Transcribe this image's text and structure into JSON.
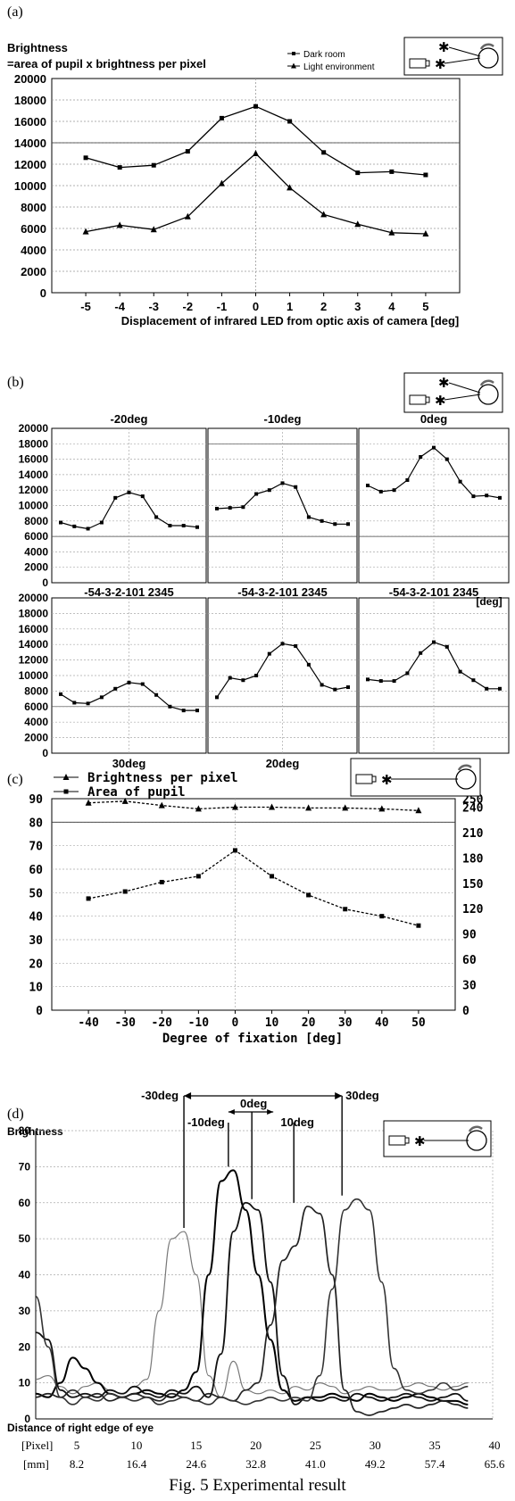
{
  "figure_caption": "Fig. 5 Experimental result",
  "chart_data": [
    {
      "panel": "(a)",
      "type": "line",
      "ylabel_lines": [
        "Brightness",
        "=area of pupil x brightness per pixel"
      ],
      "xlabel": "Displacement of infrared LED from optic axis of camera  [deg]",
      "x": [
        -5,
        -4,
        -3,
        -2,
        -1,
        0,
        1,
        2,
        3,
        4,
        5
      ],
      "xlim": [
        -6,
        6
      ],
      "ylim": [
        0,
        20000
      ],
      "yticks": [
        0,
        2000,
        4000,
        6000,
        8000,
        10000,
        12000,
        14000,
        16000,
        18000,
        20000
      ],
      "series": [
        {
          "name": "Dark room",
          "marker": "square",
          "values": [
            12600,
            11700,
            11900,
            13200,
            16300,
            17400,
            16000,
            13100,
            11200,
            11300,
            11000
          ]
        },
        {
          "name": "Light environment",
          "marker": "triangle",
          "values": [
            5700,
            6300,
            5900,
            7100,
            10200,
            13000,
            9800,
            7300,
            6400,
            5600,
            5500
          ]
        }
      ],
      "grid": true,
      "legend": "top-right"
    },
    {
      "panel": "(b)",
      "type": "line",
      "x": [
        -5,
        -4,
        -3,
        -2,
        -1,
        0,
        1,
        2,
        3,
        4,
        5
      ],
      "ylim": [
        0,
        20000
      ],
      "yticks": [
        0,
        2000,
        4000,
        6000,
        8000,
        10000,
        12000,
        14000,
        16000,
        18000,
        20000
      ],
      "xtick_text": "-54-3-2-101 2345",
      "x_unit": "[deg]",
      "subplots": [
        {
          "label": "-20deg",
          "values": [
            7800,
            7300,
            7000,
            7800,
            11000,
            11700,
            11200,
            8500,
            7400,
            7400,
            7200
          ]
        },
        {
          "label": "-10deg",
          "values": [
            9600,
            9700,
            9800,
            11500,
            12000,
            12900,
            12400,
            8500,
            8000,
            7600,
            7600
          ]
        },
        {
          "label": "0deg",
          "values": [
            12600,
            11800,
            12000,
            13300,
            16300,
            17500,
            16000,
            13100,
            11200,
            11300,
            11000
          ]
        },
        {
          "label": "30deg",
          "values": [
            7600,
            6500,
            6400,
            7200,
            8300,
            9100,
            8900,
            7500,
            6000,
            5500,
            5500
          ]
        },
        {
          "label": "20deg",
          "values": [
            7200,
            9700,
            9400,
            10000,
            12800,
            14100,
            13800,
            11400,
            8800,
            8200,
            8500
          ]
        },
        {
          "label": "10deg",
          "values": [
            9500,
            9300,
            9300,
            10300,
            12900,
            14300,
            13700,
            10500,
            9400,
            8300,
            8300
          ]
        }
      ],
      "grid": true
    },
    {
      "panel": "(c)",
      "type": "line",
      "xlabel": "Degree of fixation [deg]",
      "x": [
        -40,
        -30,
        -20,
        -10,
        0,
        10,
        20,
        30,
        40,
        50
      ],
      "xlim": [
        -50,
        60
      ],
      "left_axis": {
        "ylim": [
          0,
          90
        ],
        "yticks": [
          0,
          10,
          20,
          30,
          40,
          50,
          60,
          70,
          80,
          90
        ]
      },
      "right_axis": {
        "ylim": [
          0,
          250
        ],
        "yticks": [
          0,
          30,
          60,
          90,
          120,
          150,
          180,
          210,
          240,
          250
        ]
      },
      "series": [
        {
          "name": "Brightness per pixel",
          "marker": "triangle",
          "axis": "right",
          "values": [
            245,
            247,
            242,
            238,
            240,
            240,
            239,
            239,
            238,
            236
          ]
        },
        {
          "name": "Area of pupil",
          "marker": "square",
          "axis": "left",
          "values": [
            47.5,
            50.5,
            54.5,
            57,
            68,
            57,
            49,
            43,
            40,
            36
          ]
        }
      ],
      "grid": true,
      "legend": "top-left"
    },
    {
      "panel": "(d)",
      "type": "line",
      "ylabel": "Brightness",
      "ylim": [
        0,
        80
      ],
      "yticks": [
        0,
        10,
        20,
        30,
        40,
        50,
        60,
        70,
        80
      ],
      "xlabel": "Distance of right edge of eye",
      "pixel_ticks": {
        "unit": "[Pixel]",
        "values": [
          5,
          10,
          15,
          20,
          25,
          30,
          35,
          40
        ]
      },
      "mm_ticks": {
        "unit": "[mm]",
        "values": [
          "8.2",
          "16.4",
          "24.6",
          "32.8",
          "41.0",
          "49.2",
          "57.4",
          "65.6"
        ]
      },
      "xlim": [
        3,
        40
      ],
      "annotations": [
        "-30deg",
        "0deg",
        "30deg",
        "-10deg",
        "10deg"
      ],
      "series": [
        {
          "label": "-30deg",
          "x": [
            3,
            4,
            5,
            6,
            7,
            8,
            9,
            10,
            11,
            12,
            13,
            14,
            15,
            16,
            17,
            18,
            19,
            20,
            21,
            22,
            23,
            24,
            25,
            26,
            27,
            28,
            29,
            30,
            31,
            32,
            33,
            34,
            35,
            36,
            37,
            38
          ],
          "values": [
            11,
            12,
            9,
            7,
            9,
            10,
            8,
            7,
            9,
            11,
            30,
            50,
            52,
            40,
            12,
            6,
            16,
            8,
            7,
            8,
            7,
            9,
            8,
            10,
            9,
            7,
            8,
            9,
            8,
            8,
            9,
            10,
            9,
            8,
            9,
            10
          ]
        },
        {
          "label": "-10deg",
          "x": [
            3,
            4,
            5,
            6,
            7,
            8,
            9,
            10,
            11,
            12,
            13,
            14,
            15,
            16,
            17,
            18,
            19,
            20,
            21,
            22,
            23,
            24,
            25,
            26,
            27,
            28,
            29,
            30,
            31,
            32,
            33,
            34,
            35,
            36,
            37,
            38
          ],
          "values": [
            7,
            6,
            10,
            17,
            14,
            10,
            7,
            6,
            7,
            8,
            7,
            6,
            8,
            13,
            40,
            66,
            69,
            58,
            40,
            22,
            8,
            5,
            6,
            6,
            7,
            6,
            5,
            7,
            6,
            5,
            6,
            7,
            6,
            5,
            5,
            4
          ]
        },
        {
          "label": "0deg",
          "x": [
            3,
            4,
            5,
            6,
            7,
            8,
            9,
            10,
            11,
            12,
            13,
            14,
            15,
            16,
            17,
            18,
            19,
            20,
            21,
            22,
            23,
            24,
            25,
            26,
            27,
            28,
            29,
            30,
            31,
            32,
            33,
            34,
            35,
            36,
            37,
            38
          ],
          "values": [
            24,
            22,
            8,
            6,
            7,
            6,
            8,
            7,
            9,
            7,
            6,
            8,
            7,
            9,
            6,
            18,
            52,
            60,
            58,
            38,
            12,
            4,
            6,
            5,
            6,
            5,
            7,
            6,
            5,
            6,
            7,
            6,
            5,
            6,
            7,
            5
          ]
        },
        {
          "label": "10deg",
          "x": [
            3,
            4,
            5,
            6,
            7,
            8,
            9,
            10,
            11,
            12,
            13,
            14,
            15,
            16,
            17,
            18,
            19,
            20,
            21,
            22,
            23,
            24,
            25,
            26,
            27,
            28,
            29,
            30,
            31,
            32,
            33,
            34,
            35,
            36,
            37,
            38
          ],
          "values": [
            6,
            7,
            6,
            8,
            6,
            7,
            5,
            6,
            7,
            6,
            5,
            7,
            6,
            5,
            7,
            6,
            5,
            8,
            10,
            26,
            44,
            48,
            59,
            57,
            40,
            8,
            2,
            1,
            2,
            3,
            4,
            3,
            4,
            5,
            4,
            3
          ]
        },
        {
          "label": "30deg",
          "x": [
            3,
            4,
            5,
            6,
            7,
            8,
            9,
            10,
            11,
            12,
            13,
            14,
            15,
            16,
            17,
            18,
            19,
            20,
            21,
            22,
            23,
            24,
            25,
            26,
            27,
            28,
            29,
            30,
            31,
            32,
            33,
            34,
            35,
            36,
            37,
            38
          ],
          "values": [
            34,
            20,
            6,
            4,
            6,
            5,
            7,
            6,
            5,
            6,
            4,
            5,
            6,
            5,
            4,
            6,
            5,
            4,
            5,
            6,
            5,
            6,
            5,
            12,
            36,
            58,
            61,
            58,
            38,
            14,
            8,
            7,
            8,
            10,
            8,
            9
          ]
        }
      ],
      "grid": true
    }
  ]
}
